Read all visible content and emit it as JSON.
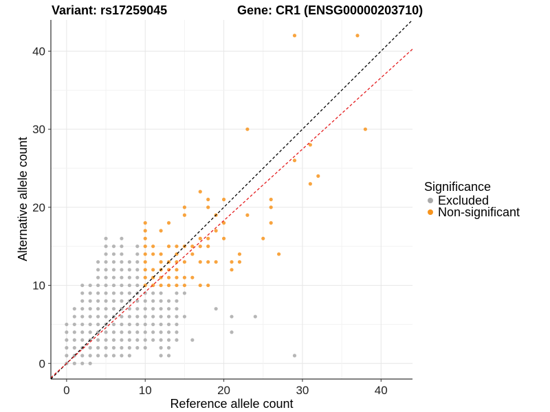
{
  "titles": {
    "variant": "Variant: rs17259045",
    "gene": "Gene: CR1 (ENSG00000203710)"
  },
  "chart_data": {
    "type": "scatter",
    "xlabel": "Reference allele count",
    "ylabel": "Alternative allele count",
    "xlim": [
      -2,
      44
    ],
    "ylim": [
      -2,
      44
    ],
    "xticks": [
      0,
      10,
      20,
      30,
      40
    ],
    "yticks": [
      0,
      10,
      20,
      30,
      40
    ],
    "grid": true,
    "legend": {
      "title": "Significance",
      "placement": "right",
      "entries": [
        {
          "label": "Excluded",
          "color": "#a9a9a9"
        },
        {
          "label": "Non-significant",
          "color": "#f7941d"
        }
      ]
    },
    "reference_lines": [
      {
        "name": "identity",
        "slope": 1.0,
        "intercept": 0,
        "color": "#000000",
        "dash": true
      },
      {
        "name": "fitted",
        "slope": 0.915,
        "intercept": 0,
        "color": "#e41a1c",
        "dash": true
      }
    ],
    "series": [
      {
        "name": "Excluded",
        "color": "#a9a9a9",
        "points": [
          [
            0,
            0
          ],
          [
            0,
            1
          ],
          [
            0,
            2
          ],
          [
            0,
            3
          ],
          [
            0,
            4
          ],
          [
            0,
            5
          ],
          [
            1,
            0
          ],
          [
            1,
            1
          ],
          [
            1,
            2
          ],
          [
            1,
            3
          ],
          [
            1,
            4
          ],
          [
            1,
            5
          ],
          [
            1,
            6
          ],
          [
            1,
            7
          ],
          [
            2,
            0
          ],
          [
            2,
            1
          ],
          [
            2,
            2
          ],
          [
            2,
            3
          ],
          [
            2,
            4
          ],
          [
            2,
            5
          ],
          [
            2,
            6
          ],
          [
            2,
            7
          ],
          [
            2,
            8
          ],
          [
            2,
            9
          ],
          [
            2,
            10
          ],
          [
            3,
            0
          ],
          [
            3,
            1
          ],
          [
            3,
            2
          ],
          [
            3,
            3
          ],
          [
            3,
            4
          ],
          [
            3,
            5
          ],
          [
            3,
            6
          ],
          [
            3,
            7
          ],
          [
            3,
            8
          ],
          [
            3,
            9
          ],
          [
            3,
            10
          ],
          [
            4,
            1
          ],
          [
            4,
            2
          ],
          [
            4,
            3
          ],
          [
            4,
            4
          ],
          [
            4,
            5
          ],
          [
            4,
            6
          ],
          [
            4,
            7
          ],
          [
            4,
            8
          ],
          [
            4,
            9
          ],
          [
            4,
            10
          ],
          [
            4,
            11
          ],
          [
            4,
            12
          ],
          [
            4,
            13
          ],
          [
            5,
            1
          ],
          [
            5,
            2
          ],
          [
            5,
            3
          ],
          [
            5,
            4
          ],
          [
            5,
            5
          ],
          [
            5,
            6
          ],
          [
            5,
            7
          ],
          [
            5,
            8
          ],
          [
            5,
            9
          ],
          [
            5,
            10
          ],
          [
            5,
            11
          ],
          [
            5,
            12
          ],
          [
            5,
            13
          ],
          [
            5,
            14
          ],
          [
            5,
            15
          ],
          [
            5,
            16
          ],
          [
            6,
            1
          ],
          [
            6,
            2
          ],
          [
            6,
            3
          ],
          [
            6,
            4
          ],
          [
            6,
            5
          ],
          [
            6,
            6
          ],
          [
            6,
            7
          ],
          [
            6,
            8
          ],
          [
            6,
            9
          ],
          [
            6,
            10
          ],
          [
            6,
            11
          ],
          [
            6,
            12
          ],
          [
            6,
            13
          ],
          [
            6,
            14
          ],
          [
            6,
            15
          ],
          [
            7,
            1
          ],
          [
            7,
            2
          ],
          [
            7,
            3
          ],
          [
            7,
            4
          ],
          [
            7,
            5
          ],
          [
            7,
            6
          ],
          [
            7,
            7
          ],
          [
            7,
            8
          ],
          [
            7,
            9
          ],
          [
            7,
            10
          ],
          [
            7,
            11
          ],
          [
            7,
            12
          ],
          [
            7,
            13
          ],
          [
            7,
            14
          ],
          [
            7,
            15
          ],
          [
            7,
            16
          ],
          [
            8,
            1
          ],
          [
            8,
            2
          ],
          [
            8,
            3
          ],
          [
            8,
            4
          ],
          [
            8,
            5
          ],
          [
            8,
            6
          ],
          [
            8,
            7
          ],
          [
            8,
            8
          ],
          [
            8,
            9
          ],
          [
            8,
            10
          ],
          [
            8,
            11
          ],
          [
            8,
            12
          ],
          [
            8,
            13
          ],
          [
            9,
            2
          ],
          [
            9,
            3
          ],
          [
            9,
            4
          ],
          [
            9,
            5
          ],
          [
            9,
            6
          ],
          [
            9,
            7
          ],
          [
            9,
            8
          ],
          [
            9,
            9
          ],
          [
            9,
            10
          ],
          [
            9,
            11
          ],
          [
            9,
            12
          ],
          [
            9,
            13
          ],
          [
            9,
            14
          ],
          [
            9,
            15
          ],
          [
            10,
            2
          ],
          [
            10,
            3
          ],
          [
            10,
            4
          ],
          [
            10,
            5
          ],
          [
            10,
            6
          ],
          [
            10,
            7
          ],
          [
            10,
            8
          ],
          [
            10,
            9
          ],
          [
            11,
            3
          ],
          [
            11,
            4
          ],
          [
            11,
            5
          ],
          [
            11,
            6
          ],
          [
            11,
            7
          ],
          [
            11,
            8
          ],
          [
            11,
            9
          ],
          [
            12,
            1
          ],
          [
            12,
            2
          ],
          [
            12,
            3
          ],
          [
            12,
            4
          ],
          [
            12,
            5
          ],
          [
            12,
            6
          ],
          [
            12,
            7
          ],
          [
            12,
            8
          ],
          [
            12,
            9
          ],
          [
            13,
            1
          ],
          [
            13,
            2
          ],
          [
            13,
            3
          ],
          [
            13,
            4
          ],
          [
            13,
            5
          ],
          [
            13,
            6
          ],
          [
            13,
            7
          ],
          [
            13,
            8
          ],
          [
            14,
            3
          ],
          [
            14,
            4
          ],
          [
            14,
            5
          ],
          [
            14,
            6
          ],
          [
            14,
            7
          ],
          [
            14,
            8
          ],
          [
            14,
            9
          ],
          [
            15,
            6
          ],
          [
            15,
            9
          ],
          [
            16,
            3
          ],
          [
            19,
            7
          ],
          [
            21,
            4
          ],
          [
            21,
            6
          ],
          [
            24,
            6
          ],
          [
            29,
            1
          ]
        ]
      },
      {
        "name": "Non-significant",
        "color": "#f7941d",
        "points": [
          [
            10,
            10
          ],
          [
            10,
            11
          ],
          [
            10,
            12
          ],
          [
            10,
            13
          ],
          [
            10,
            14
          ],
          [
            10,
            15
          ],
          [
            10,
            16
          ],
          [
            10,
            17
          ],
          [
            10,
            18
          ],
          [
            11,
            10
          ],
          [
            11,
            11
          ],
          [
            11,
            12
          ],
          [
            11,
            14
          ],
          [
            11,
            15
          ],
          [
            12,
            10
          ],
          [
            12,
            11
          ],
          [
            12,
            12
          ],
          [
            12,
            13
          ],
          [
            12,
            14
          ],
          [
            12,
            17
          ],
          [
            13,
            10
          ],
          [
            13,
            11
          ],
          [
            13,
            12
          ],
          [
            13,
            13
          ],
          [
            13,
            15
          ],
          [
            13,
            18
          ],
          [
            14,
            10
          ],
          [
            14,
            11
          ],
          [
            14,
            12
          ],
          [
            14,
            13
          ],
          [
            14,
            14
          ],
          [
            14,
            15
          ],
          [
            15,
            10
          ],
          [
            15,
            11
          ],
          [
            15,
            13
          ],
          [
            15,
            15
          ],
          [
            15,
            19
          ],
          [
            15,
            20
          ],
          [
            16,
            11
          ],
          [
            16,
            14
          ],
          [
            16,
            15
          ],
          [
            17,
            10
          ],
          [
            17,
            13
          ],
          [
            17,
            15
          ],
          [
            17,
            16
          ],
          [
            17,
            22
          ],
          [
            18,
            10
          ],
          [
            18,
            13
          ],
          [
            18,
            15
          ],
          [
            18,
            16
          ],
          [
            18,
            20
          ],
          [
            18,
            21
          ],
          [
            19,
            13
          ],
          [
            19,
            17
          ],
          [
            19,
            19
          ],
          [
            20,
            16
          ],
          [
            20,
            18
          ],
          [
            20,
            21
          ],
          [
            21,
            12
          ],
          [
            21,
            13
          ],
          [
            22,
            13
          ],
          [
            22,
            14
          ],
          [
            23,
            19
          ],
          [
            23,
            30
          ],
          [
            25,
            16
          ],
          [
            26,
            18
          ],
          [
            26,
            20
          ],
          [
            26,
            21
          ],
          [
            27,
            14
          ],
          [
            29,
            26
          ],
          [
            29,
            42
          ],
          [
            31,
            23
          ],
          [
            31,
            28
          ],
          [
            32,
            24
          ],
          [
            37,
            42
          ],
          [
            38,
            30
          ]
        ]
      }
    ]
  }
}
